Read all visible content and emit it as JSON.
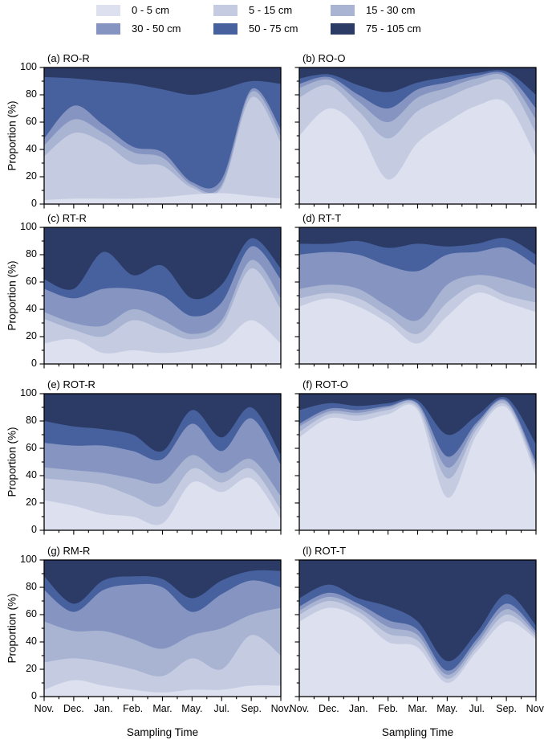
{
  "figure": {
    "ylabel": "Proportion (%)",
    "xlabel": "Sampling Time"
  },
  "chart_data": {
    "type": "area",
    "stacked": true,
    "grid": false,
    "x_categories": [
      "Nov.",
      "Dec.",
      "Jan.",
      "Feb.",
      "Mar.",
      "May.",
      "Jul.",
      "Sep.",
      "Nov."
    ],
    "xlabel": "Sampling Time",
    "ylabel": "Proportion (%)",
    "ylim": [
      0,
      100
    ],
    "yticks": [
      0,
      20,
      40,
      60,
      80,
      100
    ],
    "legend": {
      "position": "top-center",
      "entries": [
        "0 - 5 cm",
        "5 - 15 cm",
        "15 - 30 cm",
        "30 - 50 cm",
        "50 - 75 cm",
        "75 - 105 cm"
      ],
      "colors": [
        "#dde0ee",
        "#c5cce2",
        "#a9b4d2",
        "#8694c1",
        "#47619e",
        "#2c3b66"
      ]
    },
    "series_order": "bottom-to-top, one array of 9 percent values per legend entry",
    "panels": [
      {
        "id": "a",
        "title": "(a) RO-R",
        "series": [
          [
            3,
            4,
            4,
            4,
            5,
            7,
            8,
            6,
            4
          ],
          [
            32,
            48,
            41,
            26,
            23,
            5,
            4,
            72,
            41
          ],
          [
            8,
            10,
            7,
            8,
            6,
            2,
            2,
            4,
            5
          ],
          [
            5,
            10,
            6,
            4,
            4,
            2,
            4,
            2,
            5
          ],
          [
            45,
            20,
            32,
            46,
            46,
            64,
            66,
            6,
            33
          ],
          [
            7,
            8,
            10,
            12,
            16,
            20,
            16,
            10,
            12
          ]
        ]
      },
      {
        "id": "b",
        "title": "(b) RO-O",
        "series": [
          [
            50,
            70,
            55,
            18,
            45,
            60,
            72,
            74,
            35
          ],
          [
            28,
            17,
            13,
            30,
            23,
            18,
            15,
            15,
            17
          ],
          [
            7,
            4,
            7,
            12,
            10,
            7,
            5,
            4,
            10
          ],
          [
            3,
            2,
            5,
            10,
            6,
            4,
            2,
            2,
            8
          ],
          [
            4,
            2,
            7,
            12,
            5,
            4,
            2,
            2,
            10
          ],
          [
            8,
            5,
            13,
            18,
            11,
            7,
            4,
            3,
            20
          ]
        ]
      },
      {
        "id": "c",
        "title": "(c) RT-R",
        "series": [
          [
            15,
            18,
            8,
            10,
            8,
            10,
            15,
            32,
            15
          ],
          [
            18,
            7,
            12,
            22,
            17,
            8,
            13,
            38,
            25
          ],
          [
            5,
            5,
            8,
            8,
            7,
            4,
            4,
            6,
            8
          ],
          [
            17,
            18,
            27,
            15,
            18,
            13,
            13,
            10,
            14
          ],
          [
            7,
            7,
            27,
            10,
            22,
            13,
            13,
            6,
            8
          ],
          [
            38,
            45,
            18,
            35,
            28,
            52,
            42,
            8,
            30
          ]
        ]
      },
      {
        "id": "d",
        "title": "(d) RT-T",
        "series": [
          [
            42,
            48,
            42,
            30,
            15,
            35,
            52,
            45,
            38
          ],
          [
            6,
            4,
            6,
            5,
            7,
            10,
            6,
            5,
            7
          ],
          [
            7,
            6,
            7,
            7,
            10,
            13,
            7,
            12,
            10
          ],
          [
            25,
            24,
            25,
            30,
            36,
            22,
            17,
            23,
            17
          ],
          [
            8,
            6,
            10,
            13,
            20,
            6,
            6,
            7,
            8
          ],
          [
            12,
            12,
            10,
            15,
            12,
            14,
            12,
            8,
            20
          ]
        ]
      },
      {
        "id": "e",
        "title": "(e) ROT-R",
        "series": [
          [
            22,
            18,
            12,
            10,
            5,
            35,
            28,
            38,
            8
          ],
          [
            16,
            18,
            21,
            15,
            13,
            10,
            7,
            7,
            7
          ],
          [
            8,
            8,
            9,
            13,
            17,
            10,
            7,
            7,
            10
          ],
          [
            18,
            18,
            20,
            20,
            17,
            23,
            16,
            30,
            23
          ],
          [
            16,
            14,
            12,
            12,
            6,
            10,
            10,
            8,
            7
          ],
          [
            20,
            24,
            26,
            30,
            42,
            12,
            32,
            10,
            45
          ]
        ]
      },
      {
        "id": "f",
        "title": "(f) ROT-O",
        "series": [
          [
            68,
            82,
            80,
            85,
            88,
            24,
            70,
            90,
            40
          ],
          [
            4,
            3,
            4,
            3,
            2,
            14,
            4,
            2,
            4
          ],
          [
            4,
            2,
            2,
            2,
            2,
            8,
            3,
            2,
            3
          ],
          [
            2,
            2,
            2,
            1,
            1,
            8,
            2,
            1,
            3
          ],
          [
            10,
            4,
            3,
            2,
            2,
            16,
            5,
            2,
            13
          ],
          [
            12,
            7,
            9,
            7,
            5,
            30,
            16,
            3,
            37
          ]
        ]
      },
      {
        "id": "g",
        "title": "(g) RM-R",
        "series": [
          [
            5,
            12,
            8,
            5,
            3,
            5,
            5,
            8,
            8
          ],
          [
            20,
            16,
            17,
            15,
            12,
            23,
            15,
            37,
            22
          ],
          [
            30,
            20,
            23,
            22,
            20,
            17,
            30,
            15,
            35
          ],
          [
            23,
            14,
            30,
            40,
            45,
            17,
            25,
            25,
            15
          ],
          [
            10,
            6,
            7,
            6,
            6,
            10,
            10,
            7,
            12
          ],
          [
            12,
            32,
            15,
            12,
            14,
            28,
            15,
            8,
            8
          ]
        ]
      },
      {
        "id": "l",
        "title": "(l) ROT-T",
        "series": [
          [
            55,
            65,
            58,
            40,
            36,
            10,
            33,
            55,
            42
          ],
          [
            5,
            5,
            4,
            6,
            5,
            3,
            3,
            5,
            2
          ],
          [
            3,
            3,
            3,
            5,
            4,
            3,
            3,
            4,
            2
          ],
          [
            3,
            3,
            3,
            5,
            4,
            3,
            3,
            4,
            2
          ],
          [
            6,
            6,
            4,
            10,
            6,
            7,
            5,
            7,
            4
          ],
          [
            28,
            18,
            28,
            34,
            45,
            74,
            53,
            25,
            48
          ]
        ]
      }
    ]
  }
}
